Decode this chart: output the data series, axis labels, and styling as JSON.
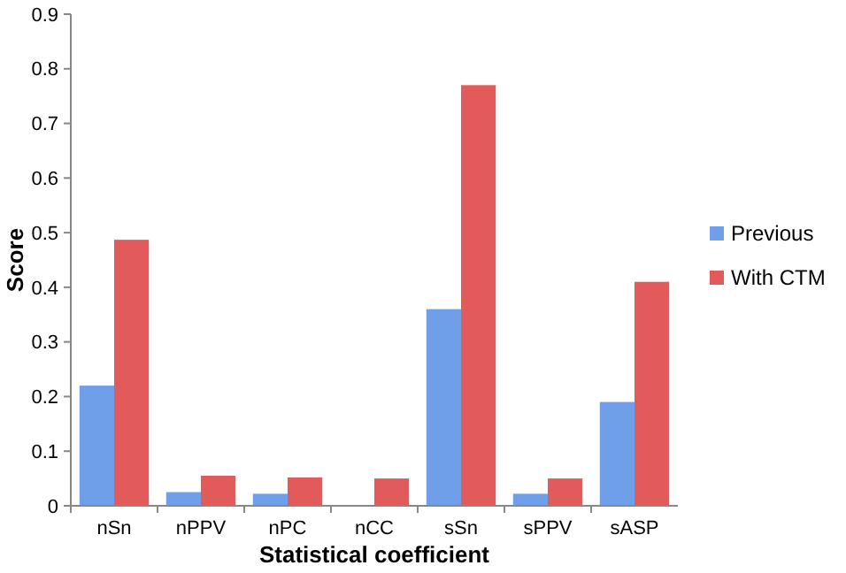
{
  "chart_data": {
    "type": "bar",
    "xlabel": "Statistical coefficient",
    "ylabel": "Score",
    "categories": [
      "nSn",
      "nPPV",
      "nPC",
      "nCC",
      "sSn",
      "sPPV",
      "sASP"
    ],
    "series": [
      {
        "name": "Previous",
        "color": "#6f9fe8",
        "values": [
          0.22,
          0.025,
          0.022,
          0,
          0.36,
          0.022,
          0.19
        ]
      },
      {
        "name": "With CTM",
        "color": "#e35a5a",
        "values": [
          0.487,
          0.055,
          0.052,
          0.05,
          0.77,
          0.05,
          0.41
        ]
      }
    ],
    "ylim": [
      0,
      0.9
    ],
    "yticks": [
      0,
      0.1,
      0.2,
      0.3,
      0.4,
      0.5,
      0.6,
      0.7,
      0.8,
      0.9
    ],
    "grid": false,
    "legend": "right"
  }
}
